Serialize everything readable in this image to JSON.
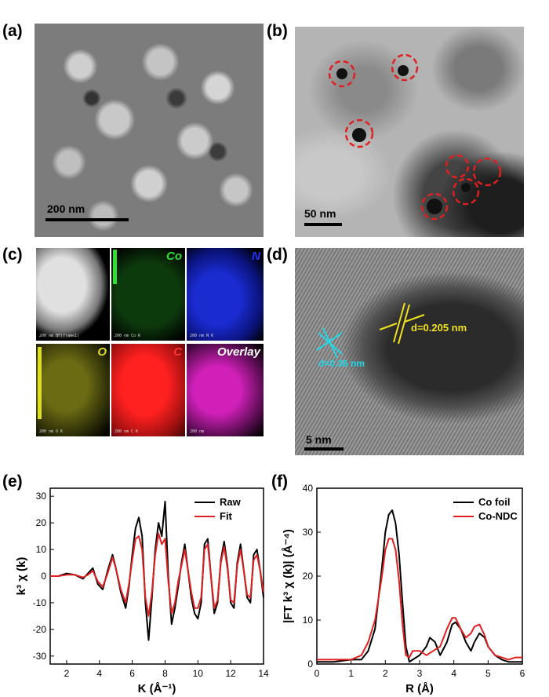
{
  "panels": {
    "a": {
      "label": "(a)",
      "scale": "200 nm"
    },
    "b": {
      "label": "(b)",
      "scale": "50 nm"
    },
    "c": {
      "label": "(c)",
      "tiles": [
        {
          "tag": "",
          "caption": "200 nm  BF(frame1)",
          "color": "#cccccc"
        },
        {
          "tag": "Co",
          "caption": "200 nm      Co K",
          "color": "#33dd33"
        },
        {
          "tag": "N",
          "caption": "200 nm      N K",
          "color": "#2233ff"
        },
        {
          "tag": "O",
          "caption": "200 nm      O K",
          "color": "#dddd22"
        },
        {
          "tag": "C",
          "caption": "200 nm      C K",
          "color": "#ff2222"
        },
        {
          "tag": "Overlay",
          "caption": "200 nm",
          "color": "#ee22cc"
        }
      ]
    },
    "d": {
      "label": "(d)",
      "scale": "5 nm",
      "d1": "d=0.205 nm",
      "d2": "d=0.36 nm"
    },
    "e": {
      "label": "(e)"
    },
    "f": {
      "label": "(f)"
    }
  },
  "chart_data": [
    {
      "type": "line",
      "panel": "e",
      "xlabel": "K (Å⁻¹)",
      "ylabel": "k³ χ (k)",
      "xlim": [
        1,
        14
      ],
      "ylim": [
        -33,
        33
      ],
      "xticks": [
        2,
        4,
        6,
        8,
        10,
        12,
        14
      ],
      "yticks": [
        -30,
        -20,
        -10,
        0,
        10,
        20,
        30
      ],
      "legend_position": "top-right",
      "series": [
        {
          "name": "Raw",
          "color": "#000000",
          "x": [
            1.0,
            1.5,
            2.0,
            2.5,
            3.0,
            3.3,
            3.6,
            3.9,
            4.2,
            4.5,
            4.8,
            5.0,
            5.3,
            5.6,
            5.8,
            6.0,
            6.2,
            6.4,
            6.6,
            6.8,
            7.0,
            7.2,
            7.4,
            7.6,
            7.8,
            8.0,
            8.2,
            8.4,
            8.6,
            8.8,
            9.0,
            9.2,
            9.4,
            9.6,
            9.8,
            10.0,
            10.2,
            10.4,
            10.6,
            10.8,
            11.0,
            11.2,
            11.4,
            11.6,
            11.8,
            12.0,
            12.2,
            12.4,
            12.6,
            12.8,
            13.0,
            13.2,
            13.4,
            13.6,
            13.8,
            14.0
          ],
          "y": [
            0,
            0,
            1,
            0.5,
            -1,
            1,
            3,
            -3,
            -5,
            2,
            8,
            3,
            -6,
            -12,
            -4,
            8,
            18,
            22,
            15,
            -10,
            -24,
            -8,
            10,
            20,
            15,
            28,
            0,
            -18,
            -12,
            -4,
            5,
            12,
            2,
            -8,
            -14,
            -16,
            -10,
            12,
            14,
            0,
            -14,
            -10,
            6,
            13,
            4,
            -10,
            -12,
            5,
            12,
            2,
            -8,
            -10,
            8,
            10,
            2,
            -8
          ]
        },
        {
          "name": "Fit",
          "color": "#e02020",
          "x": [
            1.0,
            1.5,
            2.0,
            2.5,
            3.0,
            3.3,
            3.6,
            3.9,
            4.2,
            4.5,
            4.8,
            5.0,
            5.3,
            5.6,
            5.8,
            6.0,
            6.2,
            6.4,
            6.6,
            6.8,
            7.0,
            7.2,
            7.4,
            7.6,
            7.8,
            8.0,
            8.2,
            8.4,
            8.6,
            8.8,
            9.0,
            9.2,
            9.4,
            9.6,
            9.8,
            10.0,
            10.2,
            10.4,
            10.6,
            10.8,
            11.0,
            11.2,
            11.4,
            11.6,
            11.8,
            12.0,
            12.2,
            12.4,
            12.6,
            12.8,
            13.0,
            13.2,
            13.4,
            13.6,
            13.8,
            14.0
          ],
          "y": [
            0,
            0,
            0.5,
            0.5,
            -0.5,
            0.5,
            2,
            -2,
            -4,
            1,
            7,
            3,
            -5,
            -10,
            -3,
            6,
            14,
            15,
            10,
            -8,
            -15,
            -6,
            8,
            16,
            12,
            14,
            -2,
            -14,
            -10,
            -2,
            4,
            10,
            2,
            -6,
            -12,
            -12,
            -8,
            10,
            12,
            0,
            -12,
            -9,
            5,
            11,
            3,
            -9,
            -10,
            4,
            10,
            2,
            -7,
            -8,
            6,
            8,
            2,
            -6
          ]
        }
      ]
    },
    {
      "type": "line",
      "panel": "f",
      "xlabel": "R (Å)",
      "ylabel": "|FT k³ χ (k)| (Å⁻⁴)",
      "xlim": [
        0,
        6
      ],
      "ylim": [
        0,
        40
      ],
      "xticks": [
        0,
        1,
        2,
        3,
        4,
        5,
        6
      ],
      "yticks": [
        0,
        10,
        20,
        30,
        40
      ],
      "legend_position": "top-right",
      "series": [
        {
          "name": "Co foil",
          "color": "#000000",
          "x": [
            0,
            0.5,
            1.0,
            1.3,
            1.5,
            1.7,
            1.9,
            2.0,
            2.1,
            2.2,
            2.3,
            2.4,
            2.5,
            2.6,
            2.7,
            2.8,
            3.0,
            3.2,
            3.3,
            3.45,
            3.6,
            3.8,
            3.95,
            4.05,
            4.2,
            4.35,
            4.5,
            4.6,
            4.75,
            4.9,
            5.0,
            5.2,
            5.4,
            5.6,
            5.8,
            6.0
          ],
          "y": [
            0.5,
            0.5,
            1,
            1,
            3,
            8,
            22,
            30,
            34,
            35,
            32,
            25,
            14,
            4,
            0.5,
            1,
            2,
            4,
            6,
            5,
            2,
            5,
            9,
            9.5,
            8,
            5,
            3,
            5,
            7,
            6,
            4,
            2,
            1,
            0.5,
            0.5,
            0.5
          ]
        },
        {
          "name": "Co-NDC",
          "color": "#e02020",
          "x": [
            0,
            0.5,
            1.0,
            1.3,
            1.5,
            1.7,
            1.9,
            2.0,
            2.1,
            2.2,
            2.3,
            2.4,
            2.5,
            2.6,
            2.7,
            2.8,
            3.0,
            3.2,
            3.4,
            3.6,
            3.8,
            3.95,
            4.05,
            4.2,
            4.35,
            4.5,
            4.6,
            4.75,
            4.9,
            5.0,
            5.2,
            5.4,
            5.6,
            5.8,
            6.0
          ],
          "y": [
            1,
            1,
            1,
            2,
            5,
            10,
            20,
            26,
            28.5,
            28.5,
            26,
            19,
            9,
            2,
            1.5,
            3,
            3,
            2,
            3,
            4,
            8,
            10.5,
            10.5,
            8,
            6,
            7,
            8.5,
            9,
            6.5,
            4,
            2,
            1.5,
            1,
            1.5,
            1.5
          ]
        }
      ]
    }
  ]
}
